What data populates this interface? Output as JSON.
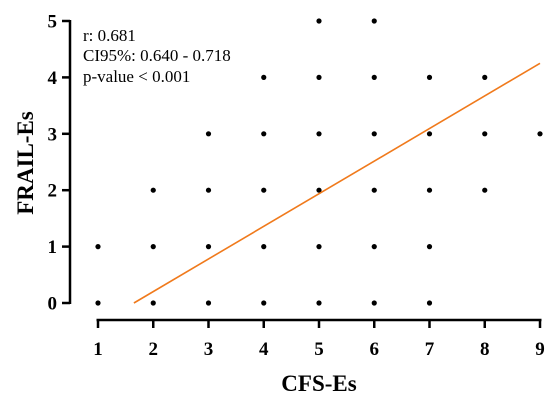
{
  "chart_data": {
    "type": "scatter",
    "xlabel": "CFS-Es",
    "ylabel": "FRAIL-Es",
    "xlim": [
      1,
      9
    ],
    "ylim": [
      0,
      5
    ],
    "xticks": [
      "1",
      "2",
      "3",
      "4",
      "5",
      "6",
      "7",
      "8",
      "9"
    ],
    "yticks": [
      "0",
      "1",
      "2",
      "3",
      "4",
      "5"
    ],
    "grid": false,
    "points": [
      {
        "x": 1,
        "y": 0
      },
      {
        "x": 1,
        "y": 1
      },
      {
        "x": 2,
        "y": 0
      },
      {
        "x": 2,
        "y": 1
      },
      {
        "x": 2,
        "y": 2
      },
      {
        "x": 3,
        "y": 0
      },
      {
        "x": 3,
        "y": 1
      },
      {
        "x": 3,
        "y": 2
      },
      {
        "x": 3,
        "y": 3
      },
      {
        "x": 4,
        "y": 0
      },
      {
        "x": 4,
        "y": 1
      },
      {
        "x": 4,
        "y": 2
      },
      {
        "x": 4,
        "y": 3
      },
      {
        "x": 4,
        "y": 4
      },
      {
        "x": 5,
        "y": 0
      },
      {
        "x": 5,
        "y": 1
      },
      {
        "x": 5,
        "y": 2
      },
      {
        "x": 5,
        "y": 3
      },
      {
        "x": 5,
        "y": 4
      },
      {
        "x": 5,
        "y": 5
      },
      {
        "x": 6,
        "y": 0
      },
      {
        "x": 6,
        "y": 1
      },
      {
        "x": 6,
        "y": 2
      },
      {
        "x": 6,
        "y": 3
      },
      {
        "x": 6,
        "y": 4
      },
      {
        "x": 6,
        "y": 5
      },
      {
        "x": 7,
        "y": 0
      },
      {
        "x": 7,
        "y": 1
      },
      {
        "x": 7,
        "y": 2
      },
      {
        "x": 7,
        "y": 3
      },
      {
        "x": 7,
        "y": 4
      },
      {
        "x": 8,
        "y": 2
      },
      {
        "x": 8,
        "y": 3
      },
      {
        "x": 8,
        "y": 4
      },
      {
        "x": 9,
        "y": 3
      }
    ],
    "regression_line": {
      "x": [
        1.65,
        9
      ],
      "y": [
        0,
        4.25
      ],
      "color": "#F07A1C"
    },
    "point_color": "#000000",
    "annotations": [
      "r: 0.681",
      "CI95%: 0.640 - 0.718",
      "p-value < 0.001"
    ]
  }
}
